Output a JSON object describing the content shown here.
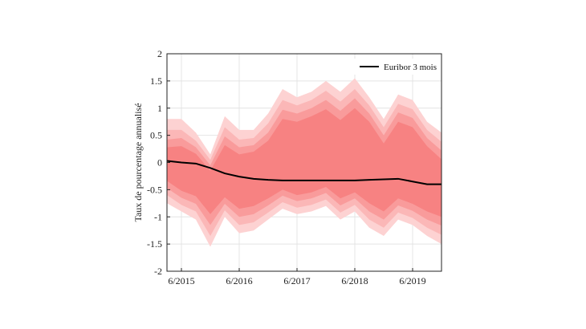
{
  "chart_data": {
    "type": "area",
    "ylabel": "Taux de pourcentage annualisé",
    "xlim": [
      2015.0,
      2019.75
    ],
    "ylim": [
      -2,
      2
    ],
    "yticks": [
      -2,
      -1.5,
      -1,
      -0.5,
      0,
      0.5,
      1,
      1.5,
      2
    ],
    "ytick_labels": [
      "-2",
      "-1.5",
      "-1",
      "-0.5",
      "0",
      "0.5",
      "1",
      "1.5",
      "2"
    ],
    "xticks": [
      2015.25,
      2016.25,
      2017.25,
      2018.25,
      2019.25
    ],
    "xtick_labels": [
      "6/2015",
      "6/2016",
      "6/2017",
      "6/2018",
      "6/2019"
    ],
    "grid": true,
    "legend_position": "top-right",
    "x": [
      2015.0,
      2015.25,
      2015.5,
      2015.75,
      2016.0,
      2016.25,
      2016.5,
      2016.75,
      2017.0,
      2017.25,
      2017.5,
      2017.75,
      2018.0,
      2018.25,
      2018.5,
      2018.75,
      2019.0,
      2019.25,
      2019.5,
      2019.75
    ],
    "series": [
      {
        "name": "Euribor 3 mois",
        "color": "#000000",
        "values": [
          0.03,
          0.0,
          -0.02,
          -0.1,
          -0.2,
          -0.26,
          -0.3,
          -0.32,
          -0.33,
          -0.33,
          -0.33,
          -0.33,
          -0.33,
          -0.33,
          -0.32,
          -0.31,
          -0.3,
          -0.35,
          -0.4,
          -0.4
        ]
      }
    ],
    "fan_bands": [
      {
        "color": "#fdd2d2",
        "upper": [
          0.8,
          0.8,
          0.55,
          0.15,
          0.85,
          0.6,
          0.6,
          0.9,
          1.35,
          1.2,
          1.3,
          1.5,
          1.3,
          1.55,
          1.2,
          0.8,
          1.25,
          1.15,
          0.75,
          0.55
        ],
        "lower": [
          -0.75,
          -0.9,
          -1.05,
          -1.55,
          -1.0,
          -1.3,
          -1.25,
          -1.05,
          -0.85,
          -0.95,
          -0.9,
          -0.8,
          -1.05,
          -0.9,
          -1.2,
          -1.35,
          -1.05,
          -1.15,
          -1.35,
          -1.5
        ]
      },
      {
        "color": "#fbb7b7",
        "upper": [
          0.6,
          0.6,
          0.4,
          0.05,
          0.65,
          0.42,
          0.45,
          0.72,
          1.15,
          1.05,
          1.15,
          1.32,
          1.12,
          1.35,
          1.05,
          0.65,
          1.08,
          0.98,
          0.6,
          0.38
        ],
        "lower": [
          -0.6,
          -0.78,
          -0.9,
          -1.35,
          -0.88,
          -1.15,
          -1.1,
          -0.92,
          -0.73,
          -0.83,
          -0.78,
          -0.68,
          -0.92,
          -0.78,
          -1.05,
          -1.2,
          -0.92,
          -1.02,
          -1.2,
          -1.33
        ]
      },
      {
        "color": "#f99b9b",
        "upper": [
          0.42,
          0.45,
          0.28,
          -0.05,
          0.48,
          0.28,
          0.32,
          0.55,
          0.97,
          0.9,
          1.0,
          1.15,
          0.95,
          1.18,
          0.9,
          0.5,
          0.92,
          0.82,
          0.45,
          0.22
        ],
        "lower": [
          -0.47,
          -0.65,
          -0.76,
          -1.15,
          -0.76,
          -1.0,
          -0.95,
          -0.79,
          -0.61,
          -0.71,
          -0.66,
          -0.56,
          -0.79,
          -0.66,
          -0.9,
          -1.05,
          -0.79,
          -0.89,
          -1.05,
          -1.16
        ]
      },
      {
        "color": "#f78282",
        "upper": [
          0.28,
          0.3,
          0.16,
          -0.15,
          0.32,
          0.15,
          0.2,
          0.4,
          0.8,
          0.75,
          0.85,
          0.98,
          0.78,
          1.0,
          0.75,
          0.35,
          0.75,
          0.65,
          0.3,
          0.06
        ],
        "lower": [
          -0.34,
          -0.52,
          -0.62,
          -0.95,
          -0.64,
          -0.85,
          -0.8,
          -0.66,
          -0.5,
          -0.6,
          -0.55,
          -0.45,
          -0.66,
          -0.55,
          -0.75,
          -0.9,
          -0.66,
          -0.76,
          -0.9,
          -1.0
        ]
      }
    ]
  }
}
